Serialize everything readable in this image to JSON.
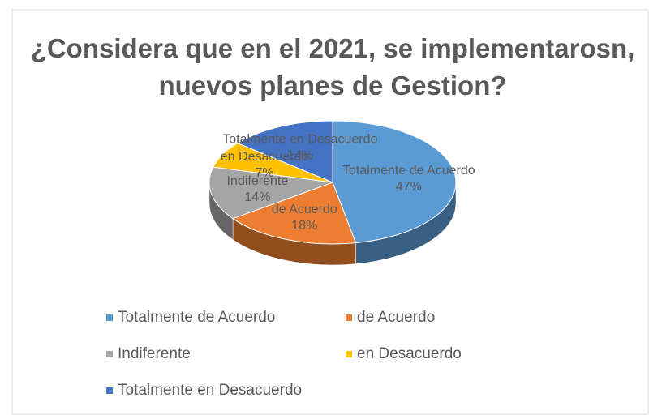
{
  "chart_data": {
    "type": "pie",
    "title": "¿Considera que en el 2021, se implementarosn, nuevos planes de Gestion?",
    "categories": [
      "Totalmente de Acuerdo",
      "de Acuerdo",
      "Indiferente",
      "en Desacuerdo",
      "Totalmente en Desacuerdo"
    ],
    "values": [
      47,
      18,
      14,
      7,
      14
    ],
    "value_labels": [
      "47%",
      "18%",
      "14%",
      "7%",
      "14%"
    ],
    "colors": [
      "#5b9bd5",
      "#ed7d31",
      "#a5a5a5",
      "#ffc000",
      "#4472c4"
    ],
    "legend": "bottom"
  }
}
